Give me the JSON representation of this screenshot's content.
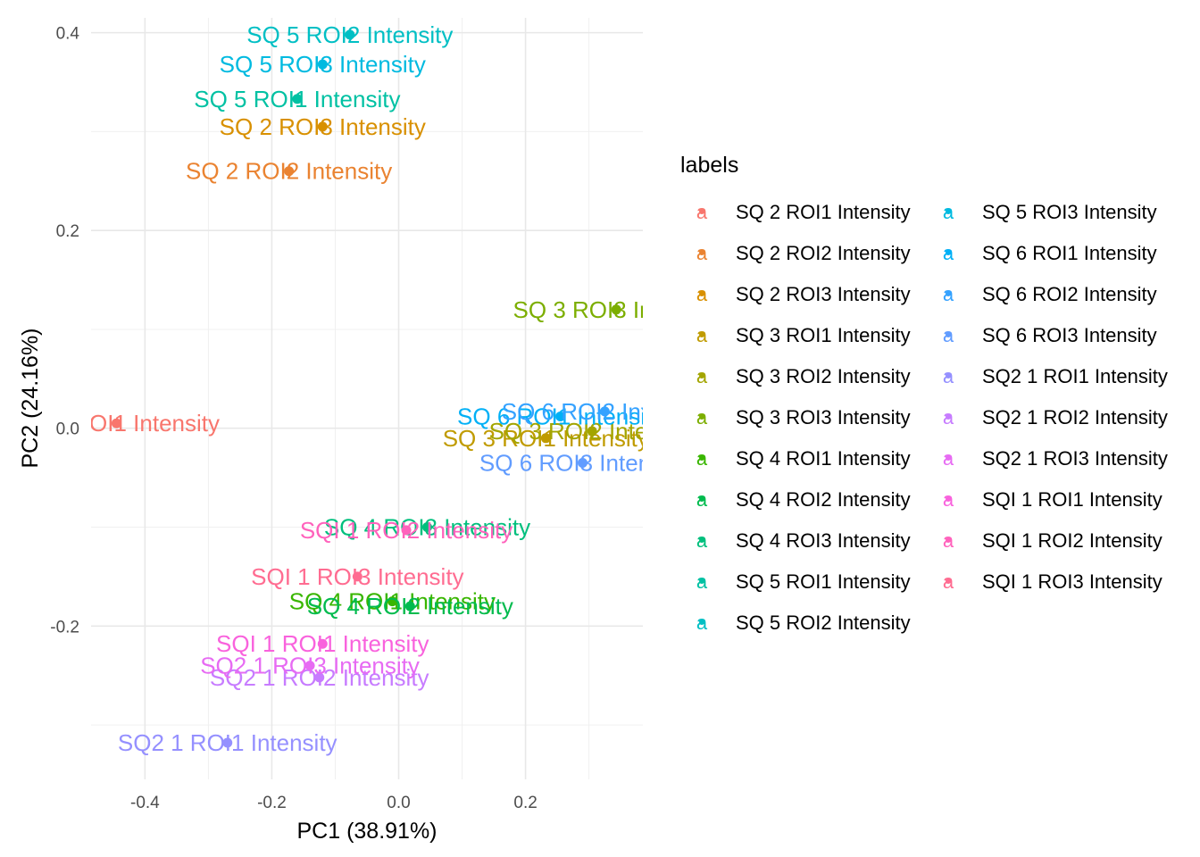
{
  "chart_data": {
    "type": "scatter",
    "xlabel": "PC1 (38.91%)",
    "ylabel": "PC2 (24.16%)",
    "xlim": [
      -0.485,
      0.385
    ],
    "ylim": [
      -0.355,
      0.415
    ],
    "x_ticks": [
      -0.4,
      -0.2,
      0.0,
      0.2
    ],
    "x_tick_labels": [
      "-0.4",
      "-0.2",
      "0.0",
      "0.2"
    ],
    "y_ticks": [
      -0.2,
      0.0,
      0.2,
      0.4
    ],
    "y_tick_labels": [
      "-0.2",
      "0.0",
      "0.2",
      "0.4"
    ],
    "grid": true,
    "legend_title": "labels",
    "legend_position": "right",
    "points": [
      {
        "label": "SQ 2 ROI1 Intensity",
        "x": -0.445,
        "y": 0.005,
        "color": "#F8766D"
      },
      {
        "label": "SQ 2 ROI2 Intensity",
        "x": -0.173,
        "y": 0.26,
        "color": "#EA8331"
      },
      {
        "label": "SQ 2 ROI3 Intensity",
        "x": -0.12,
        "y": 0.305,
        "color": "#D89000"
      },
      {
        "label": "SQ 3 ROI1 Intensity",
        "x": 0.232,
        "y": -0.01,
        "color": "#C09B00"
      },
      {
        "label": "SQ 3 ROI2 Intensity",
        "x": 0.305,
        "y": -0.003,
        "color": "#A3A500"
      },
      {
        "label": "SQ 3 ROI3 Intensity",
        "x": 0.343,
        "y": 0.12,
        "color": "#7CAE00"
      },
      {
        "label": "SQ 4 ROI1 Intensity",
        "x": -0.01,
        "y": -0.175,
        "color": "#39B600"
      },
      {
        "label": "SQ 4 ROI2 Intensity",
        "x": 0.018,
        "y": -0.18,
        "color": "#00BB4E"
      },
      {
        "label": "SQ 4 ROI3 Intensity",
        "x": 0.045,
        "y": -0.1,
        "color": "#00BF7D"
      },
      {
        "label": "SQ 5 ROI1 Intensity",
        "x": -0.16,
        "y": 0.333,
        "color": "#00C1A3"
      },
      {
        "label": "SQ 5 ROI2 Intensity",
        "x": -0.077,
        "y": 0.398,
        "color": "#00BFC4"
      },
      {
        "label": "SQ 5 ROI3 Intensity",
        "x": -0.12,
        "y": 0.368,
        "color": "#00BAE0"
      },
      {
        "label": "SQ 6 ROI1 Intensity",
        "x": 0.255,
        "y": 0.012,
        "color": "#00B0F6"
      },
      {
        "label": "SQ 6 ROI2 Intensity",
        "x": 0.325,
        "y": 0.017,
        "color": "#35A2FF"
      },
      {
        "label": "SQ 6 ROI3 Intensity",
        "x": 0.29,
        "y": -0.035,
        "color": "#619CFF"
      },
      {
        "label": "SQ2 1 ROI1 Intensity",
        "x": -0.27,
        "y": -0.318,
        "color": "#9590FF"
      },
      {
        "label": "SQ2 1 ROI2 Intensity",
        "x": -0.125,
        "y": -0.252,
        "color": "#C77CFF"
      },
      {
        "label": "SQ2 1 ROI3 Intensity",
        "x": -0.14,
        "y": -0.24,
        "color": "#E76BF3"
      },
      {
        "label": "SQI 1 ROI1 Intensity",
        "x": -0.12,
        "y": -0.218,
        "color": "#F962DD"
      },
      {
        "label": "SQI 1 ROI2 Intensity",
        "x": 0.012,
        "y": -0.103,
        "color": "#FF62BC"
      },
      {
        "label": "SQI 1 ROI3 Intensity",
        "x": -0.065,
        "y": -0.15,
        "color": "#FF6C91"
      }
    ]
  }
}
